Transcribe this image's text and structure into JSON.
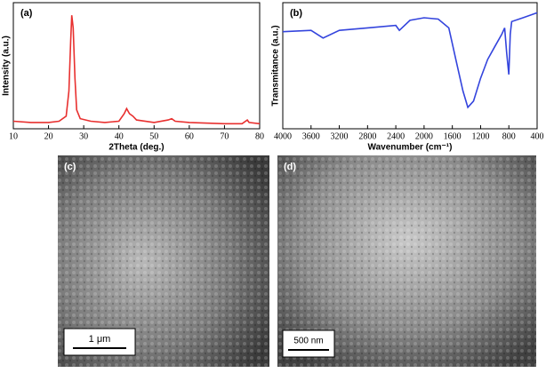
{
  "chart_data": [
    {
      "type": "line",
      "label": "(a)",
      "xlabel": "2Theta (deg.)",
      "ylabel": "Intensity (a.u.)",
      "xlim": [
        10,
        80
      ],
      "xticks": [
        10,
        20,
        30,
        40,
        50,
        60,
        70,
        80
      ],
      "ylim": [
        0,
        100
      ],
      "series": [
        {
          "color": "#e8302f",
          "x": [
            10,
            15,
            20,
            23,
            25,
            25.8,
            26.3,
            26.6,
            27,
            27.5,
            28,
            29,
            32,
            36,
            40,
            41.5,
            42.2,
            43,
            44,
            45,
            50,
            54,
            55,
            56,
            60,
            70,
            75,
            76.5,
            77,
            80
          ],
          "values": [
            6,
            5,
            5,
            6,
            10,
            30,
            70,
            90,
            80,
            40,
            15,
            8,
            6,
            5,
            6,
            12,
            16,
            12,
            10,
            7,
            5,
            7,
            8,
            6,
            5,
            4,
            4,
            7,
            5,
            4
          ]
        }
      ]
    },
    {
      "type": "line",
      "label": "(b)",
      "xlabel": "Wavenumber (cm⁻¹)",
      "ylabel": "Transmitance (a.u.)",
      "xlim": [
        4000,
        400
      ],
      "xticks": [
        4000,
        3600,
        3200,
        2800,
        2400,
        2000,
        1600,
        1200,
        800,
        400
      ],
      "ylim": [
        0,
        100
      ],
      "series": [
        {
          "color": "#3344dd",
          "x": [
            4000,
            3600,
            3430,
            3200,
            2800,
            2400,
            2350,
            2200,
            2000,
            1800,
            1650,
            1550,
            1450,
            1380,
            1300,
            1200,
            1100,
            1000,
            900,
            860,
            830,
            800,
            780,
            760,
            600,
            400
          ],
          "values": [
            77,
            78,
            72,
            78,
            80,
            82,
            78,
            86,
            88,
            87,
            80,
            55,
            30,
            17,
            22,
            40,
            55,
            65,
            75,
            80,
            60,
            43,
            75,
            85,
            88,
            92
          ]
        }
      ]
    }
  ],
  "images": [
    {
      "label": "(c)",
      "scale_bar": "1 μm"
    },
    {
      "label": "(d)",
      "scale_bar": "500 nm"
    }
  ]
}
